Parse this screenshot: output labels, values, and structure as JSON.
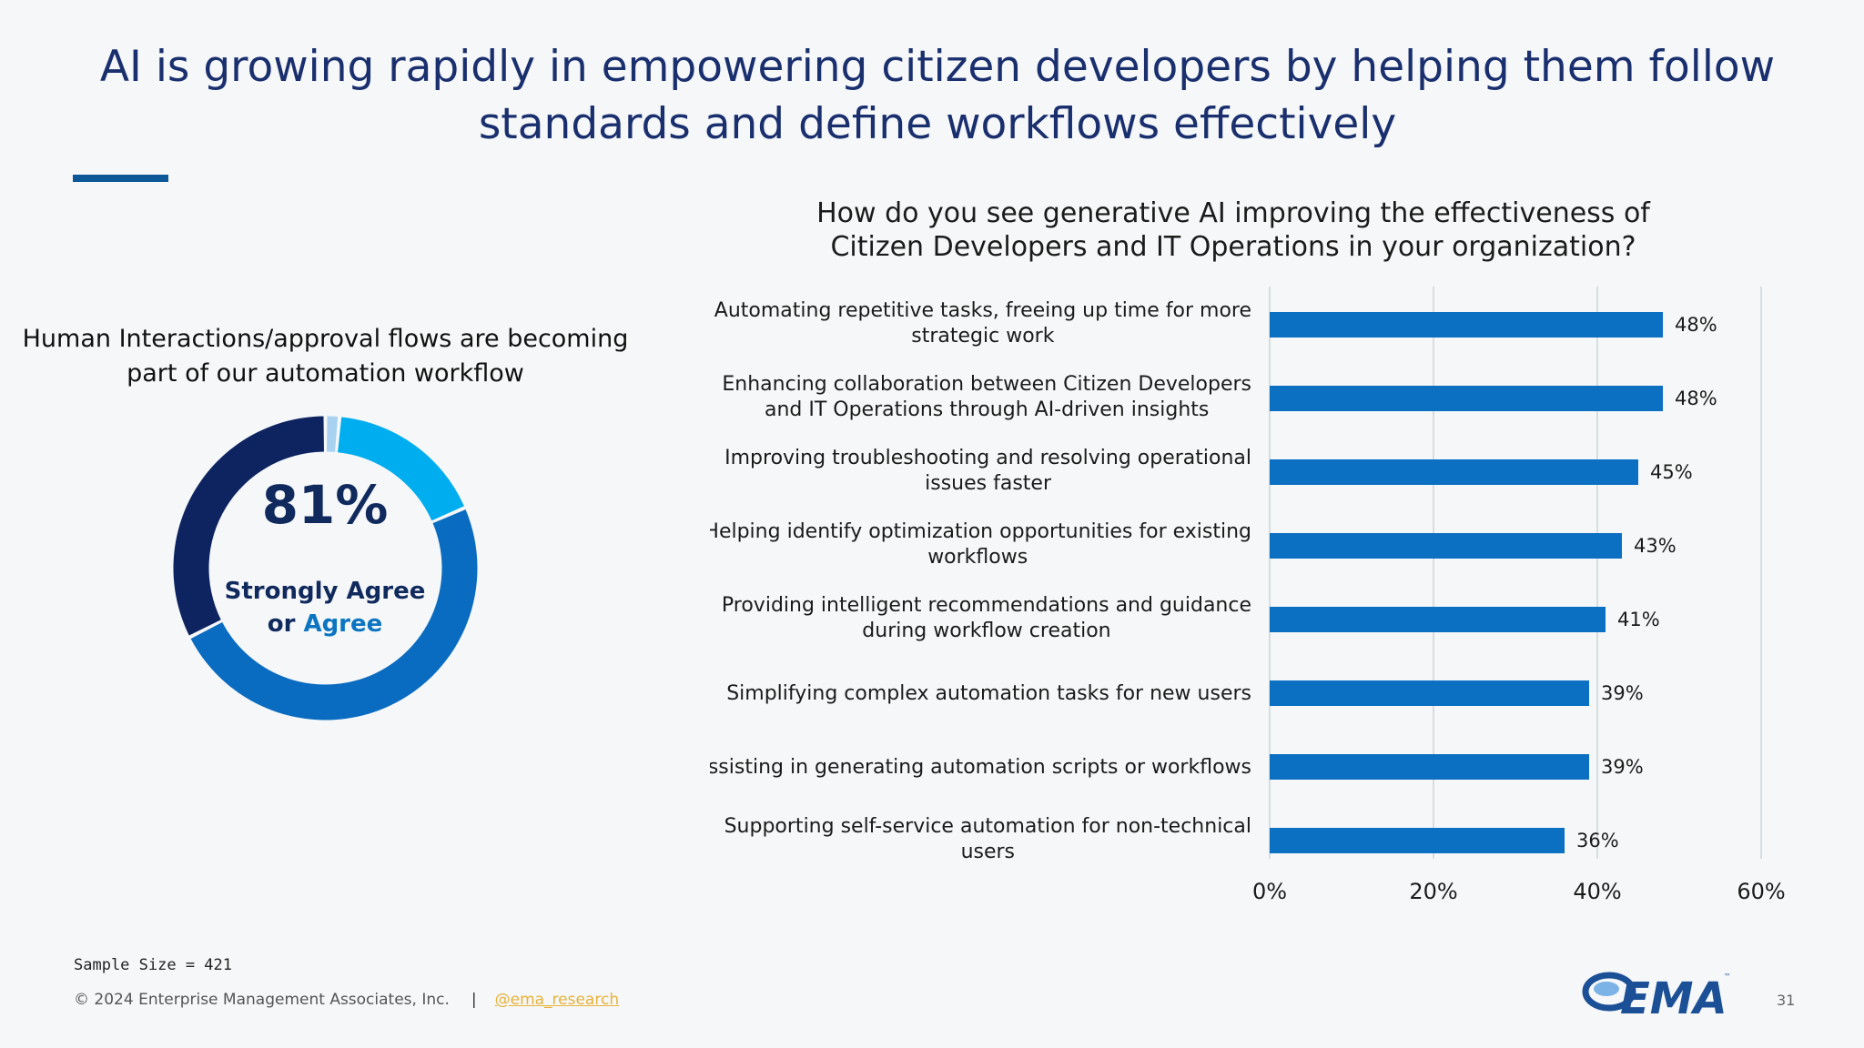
{
  "slide": {
    "title_line1": "AI is growing rapidly in empowering citizen developers by helping them follow",
    "title_line2": "standards and define workflows effectively",
    "page_number": "31"
  },
  "donut": {
    "question_line1": "Human Interactions/approval flows are becoming",
    "question_line2": "part of our automation workflow",
    "center_value": "81%",
    "center_label_line1": "Strongly Agree",
    "center_label_or": "or",
    "center_label_agree": "Agree"
  },
  "bar_chart_title": {
    "line1": "How do you see generative AI improving the effectiveness of",
    "line2": "Citizen Developers and IT Operations in your organization?"
  },
  "chart_data": [
    {
      "type": "pie",
      "donut": true,
      "slices": [
        {
          "value": 1.5,
          "color": "#a9d2f1"
        },
        {
          "value": 17,
          "color": "#00adef"
        },
        {
          "value": 49,
          "color": "#0a6cc0"
        },
        {
          "value": 32.5,
          "color": "#0e2460"
        }
      ]
    },
    {
      "type": "bar",
      "orientation": "horizontal",
      "title": "How do you see generative AI improving the effectiveness of Citizen Developers and IT Operations in your organization?",
      "categories": [
        [
          "Automating repetitive tasks, freeing up time for more",
          "strategic work"
        ],
        [
          "Enhancing collaboration between Citizen Developers",
          "and IT Operations through AI-driven insights"
        ],
        [
          "Improving troubleshooting and resolving operational",
          "issues faster"
        ],
        [
          "Helping identify optimization opportunities for existing",
          "workflows"
        ],
        [
          "Providing intelligent recommendations and guidance",
          "during workflow creation"
        ],
        [
          "Simplifying complex automation tasks for new users"
        ],
        [
          "Assisting in generating automation scripts or workflows"
        ],
        [
          "Supporting self-service automation for non-technical",
          "users"
        ]
      ],
      "values": [
        48,
        48,
        45,
        43,
        41,
        39,
        39,
        36
      ],
      "value_labels": [
        "48%",
        "48%",
        "45%",
        "43%",
        "41%",
        "39%",
        "39%",
        "36%"
      ],
      "xlim": [
        0,
        60
      ],
      "xticks": [
        "0%",
        "20%",
        "40%",
        "60%"
      ],
      "grid": true,
      "bar_color": "#0b6fc2"
    }
  ],
  "footer": {
    "sample_size": "Sample Size = 421",
    "copyright": "© 2024 Enterprise Management Associates, Inc.",
    "separator": "|",
    "handle": "@ema_research"
  },
  "logo": {
    "text": "EMA",
    "color": "#1b4f96"
  }
}
